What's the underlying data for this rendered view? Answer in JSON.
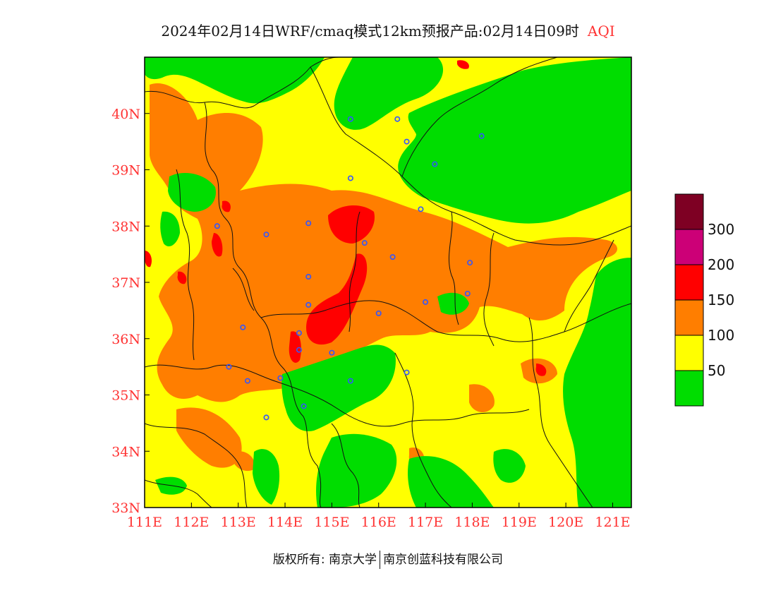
{
  "title": {
    "main": "2024年02月14日WRF/cmaq模式12km预报产品:02月14日09时",
    "suffix": "AQI",
    "suffix_color": "#ff3333"
  },
  "map": {
    "x_range": [
      111,
      121.4
    ],
    "y_range": [
      33,
      41
    ],
    "x_ticks": [
      {
        "value": 111,
        "label": "111E"
      },
      {
        "value": 112,
        "label": "112E"
      },
      {
        "value": 113,
        "label": "113E"
      },
      {
        "value": 114,
        "label": "114E"
      },
      {
        "value": 115,
        "label": "115E"
      },
      {
        "value": 116,
        "label": "116E"
      },
      {
        "value": 117,
        "label": "117E"
      },
      {
        "value": 118,
        "label": "118E"
      },
      {
        "value": 119,
        "label": "119E"
      },
      {
        "value": 120,
        "label": "120E"
      },
      {
        "value": 121,
        "label": "121E"
      }
    ],
    "y_ticks": [
      {
        "value": 33,
        "label": "33N"
      },
      {
        "value": 34,
        "label": "34N"
      },
      {
        "value": 35,
        "label": "35N"
      },
      {
        "value": 36,
        "label": "36N"
      },
      {
        "value": 37,
        "label": "37N"
      },
      {
        "value": 38,
        "label": "38N"
      },
      {
        "value": 39,
        "label": "39N"
      },
      {
        "value": 40,
        "label": "40N"
      }
    ],
    "tick_label_color": "#ff3333",
    "legend": {
      "colors": [
        "#00dd00",
        "#ffff00",
        "#ff7e00",
        "#ff0000",
        "#cc0077",
        "#7e0023"
      ],
      "labels": [
        "50",
        "100",
        "150",
        "200",
        "300"
      ]
    },
    "stations": [
      [
        115.4,
        39.9
      ],
      [
        116.4,
        39.9
      ],
      [
        116.6,
        39.5
      ],
      [
        117.2,
        39.1
      ],
      [
        118.2,
        39.6
      ],
      [
        115.4,
        38.85
      ],
      [
        116.9,
        38.3
      ],
      [
        112.55,
        38.0
      ],
      [
        113.6,
        37.85
      ],
      [
        114.5,
        38.05
      ],
      [
        115.7,
        37.7
      ],
      [
        116.3,
        37.45
      ],
      [
        117.95,
        37.35
      ],
      [
        114.5,
        37.1
      ],
      [
        117.0,
        36.65
      ],
      [
        117.9,
        36.8
      ],
      [
        114.5,
        36.6
      ],
      [
        116.0,
        36.45
      ],
      [
        113.1,
        36.2
      ],
      [
        114.3,
        36.1
      ],
      [
        114.3,
        35.8
      ],
      [
        115.0,
        35.75
      ],
      [
        112.8,
        35.5
      ],
      [
        113.2,
        35.25
      ],
      [
        113.9,
        35.3
      ],
      [
        115.4,
        35.25
      ],
      [
        116.6,
        35.4
      ],
      [
        114.4,
        34.8
      ],
      [
        113.6,
        34.6
      ]
    ]
  },
  "footer": {
    "left": "版权所有: 南京大学",
    "right": "南京创蓝科技有限公司"
  }
}
